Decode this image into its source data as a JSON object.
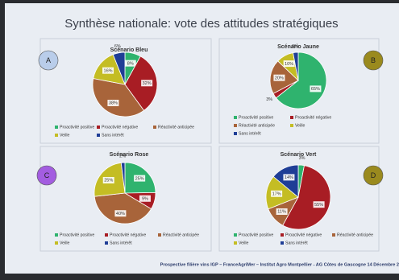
{
  "title": "Synthèse nationale: vote des attitudes stratégiques",
  "footer": "Prospective filière vins IGP – FranceAgriMer – Institut Agro Montpellier - AG Côtes de Gascogne 14 Décembre 2",
  "chart_data": [
    {
      "type": "pie",
      "title": "Scénario Bleu",
      "badge": "A",
      "categories": [
        "Proactivité positive",
        "Proactivité négative",
        "Réactivité anticipée",
        "Veille",
        "Sans intérêt"
      ],
      "values": [
        8,
        32,
        38,
        16,
        6
      ],
      "value_labels": [
        "8%",
        "32%",
        "38%",
        "16%",
        "6%"
      ],
      "colors": [
        "#2fb36e",
        "#a81d24",
        "#a8643a",
        "#c4bd24",
        "#1f3e96"
      ]
    },
    {
      "type": "pie",
      "title": "Scénario Jaune",
      "badge": "B",
      "categories": [
        "Proactivité positive",
        "Proactivité négative",
        "Réactivité anticipée",
        "Veille",
        "Sans intérêt"
      ],
      "values": [
        65,
        3,
        20,
        10,
        3
      ],
      "value_labels": [
        "65%",
        "3%",
        "20%",
        "10%",
        "3%"
      ],
      "colors": [
        "#2fb36e",
        "#a81d24",
        "#a8643a",
        "#c4bd24",
        "#1f3e96"
      ]
    },
    {
      "type": "pie",
      "title": "Scénario Rose",
      "badge": "C",
      "categories": [
        "Proactivité positive",
        "Proactivité négative",
        "Réactivité anticipée",
        "Veille",
        "Sans intérêt"
      ],
      "values": [
        25,
        9,
        40,
        25,
        2
      ],
      "value_labels": [
        "25%",
        "9%",
        "40%",
        "25%",
        "2%"
      ],
      "colors": [
        "#2fb36e",
        "#a81d24",
        "#a8643a",
        "#c4bd24",
        "#1f3e96"
      ]
    },
    {
      "type": "pie",
      "title": "Scénario Vert",
      "badge": "D",
      "categories": [
        "Proactivité positive",
        "Proactivité négative",
        "Réactivité anticipée",
        "Veille",
        "Sans intérêt"
      ],
      "values": [
        3,
        55,
        11,
        17,
        14
      ],
      "value_labels": [
        "3%",
        "55%",
        "11%",
        "17%",
        "14%"
      ],
      "colors": [
        "#2fb36e",
        "#a81d24",
        "#a8643a",
        "#c4bd24",
        "#1f3e96"
      ]
    }
  ]
}
